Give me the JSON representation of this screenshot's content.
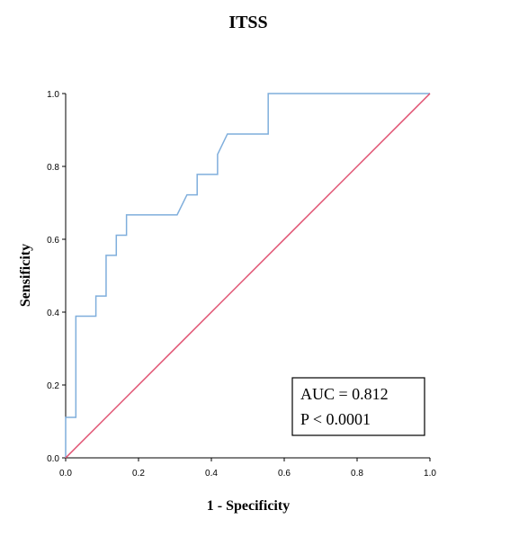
{
  "chart_data": {
    "type": "line",
    "title": "ITSS",
    "xlabel": "1 - Specificity",
    "ylabel": "Sensificity",
    "xlim": [
      0.0,
      1.0
    ],
    "ylim": [
      0.0,
      1.0
    ],
    "x_ticks": [
      "0.0",
      "0.2",
      "0.4",
      "0.6",
      "0.8",
      "1.0"
    ],
    "y_ticks": [
      "0.0",
      "0.2",
      "0.4",
      "0.6",
      "0.8",
      "1.0"
    ],
    "grid": false,
    "legend": "none",
    "series": [
      {
        "color": "#7faedc",
        "points": [
          [
            0.0,
            0.0
          ],
          [
            0.0,
            0.111
          ],
          [
            0.028,
            0.111
          ],
          [
            0.028,
            0.389
          ],
          [
            0.083,
            0.389
          ],
          [
            0.083,
            0.444
          ],
          [
            0.111,
            0.444
          ],
          [
            0.111,
            0.556
          ],
          [
            0.139,
            0.556
          ],
          [
            0.139,
            0.611
          ],
          [
            0.167,
            0.611
          ],
          [
            0.167,
            0.667
          ],
          [
            0.306,
            0.667
          ],
          [
            0.333,
            0.722
          ],
          [
            0.361,
            0.722
          ],
          [
            0.361,
            0.778
          ],
          [
            0.417,
            0.778
          ],
          [
            0.417,
            0.833
          ],
          [
            0.444,
            0.889
          ],
          [
            0.556,
            0.889
          ],
          [
            0.556,
            1.0
          ],
          [
            1.0,
            1.0
          ]
        ]
      },
      {
        "color": "#e05070",
        "points": [
          [
            0.0,
            0.0
          ],
          [
            1.0,
            1.0
          ]
        ]
      }
    ],
    "annotations": [
      "AUC = 0.812",
      "P < 0.0001"
    ]
  }
}
